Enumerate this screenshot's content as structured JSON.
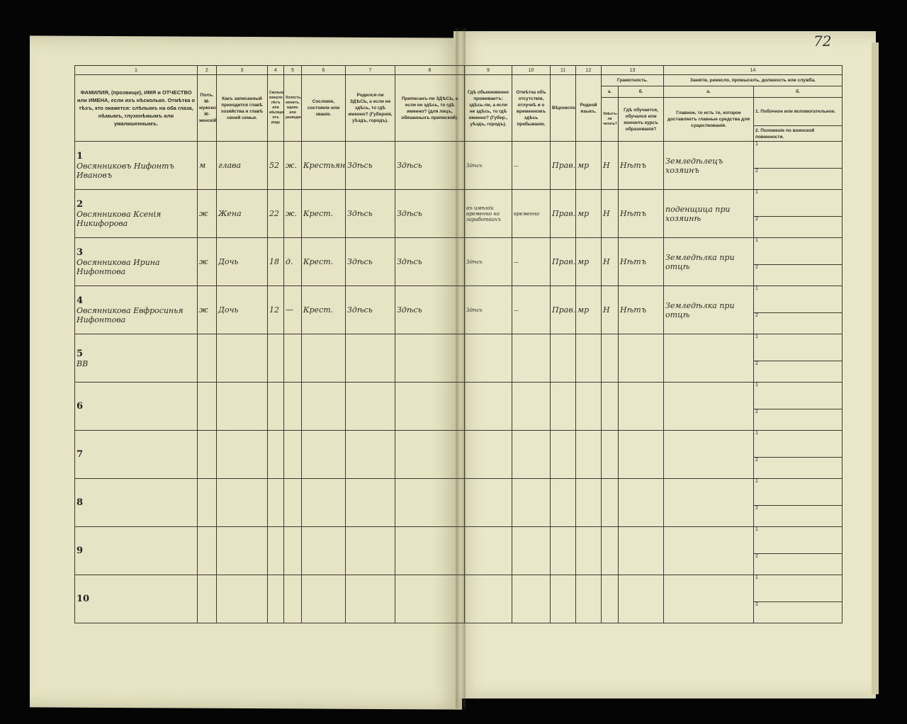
{
  "page_number": "72",
  "header": {
    "col_numbers": [
      "1",
      "2",
      "3",
      "4",
      "5",
      "6",
      "7",
      "8",
      "9",
      "10",
      "11",
      "12",
      "13",
      "14"
    ],
    "col1": "ФАМИЛИЯ, (прозвище), ИМЯ и ОТЧЕСТВО или ИМЕНА, если ихъ нѣсколько. Отмѣтка о тѣхъ, кто окажется: слѣпымъ на оба глаза, нѣмымъ, глухонѣмымъ или умалишеннымъ.",
    "col2": "Полъ. М-мужской. Ж-женскій.",
    "col3": "Какъ записанный приходится главѣ хозяйства и главѣ своей семьи.",
    "col4": "Сколько минуло лѣтъ или мѣсяцевъ отъ роду",
    "col5": "Холостъ, женатъ, вдовъ или разведенъ",
    "col6": "Сословіе, состояніе или званіе.",
    "col7": "Родился-ли ЗДѢСЬ, а если не здѣсь, то гдѣ именно? (Губернія, уѣздъ, городъ).",
    "col8": "Приписанъ-ли ЗДѢСЬ, а если не здѣсь, то гдѣ именно? (для лицъ, обязанныхъ припиской).",
    "col9": "Гдѣ обыкновенно проживаетъ: здѣсь-ли, а если не здѣсь, то гдѣ именно? (Губер., уѣздъ, городъ).",
    "col10": "Отмѣтка объ отсутствіи, отлучкѣ и о временномъ здѣсь пребываніи.",
    "col11": "Вѣроисповѣданіе.",
    "col12": "Родной языкъ.",
    "col13": "Грамотность.",
    "col13a_letter": "а.",
    "col13b_letter": "б.",
    "col13a": "Умѣетъ-ли читать?",
    "col13b": "Гдѣ обучается, обучался или кончилъ курсъ образованія?",
    "col14": "Занятіе, ремесло, промыселъ, должность или служба.",
    "col14a_letter": "а.",
    "col14b_letter": "б.",
    "col14a": "Главное, то есть то, которое доставляетъ главные средства для существованія.",
    "col14b_1": "1. Побочное или вспомогательное.",
    "col14b_2": "2. Положеніе по воинской повинности."
  },
  "sub_labels": [
    "1",
    "2"
  ],
  "rows": [
    {
      "n": "1",
      "name": "Овсянниковъ Нифонтъ Ивановъ",
      "sex": "м",
      "relation": "глава",
      "age": "52",
      "married": "ж.",
      "estate": "Крестьянинъ",
      "born": "Здѣсь",
      "registered": "Здѣсь",
      "residence": "Здѣсь",
      "absence": "—",
      "religion": "Прав.",
      "language": "мр",
      "literate": "Н",
      "education": "Нѣтъ",
      "occupation": "Земледѣлецъ хозяинъ"
    },
    {
      "n": "2",
      "name": "Овсянникова Ксенія Никифорова",
      "sex": "ж",
      "relation": "Жена",
      "age": "22",
      "married": "ж.",
      "estate": "Крест.",
      "born": "Здѣсь",
      "registered": "Здѣсь",
      "residence": "въ имѣніи временно на заработкахъ",
      "absence": "временно",
      "religion": "Прав.",
      "language": "мр",
      "literate": "Н",
      "education": "Нѣтъ",
      "occupation": "поденщица при хозяинѣ"
    },
    {
      "n": "3",
      "name": "Овсянникова Ирина Нифонтова",
      "sex": "ж",
      "relation": "Дочь",
      "age": "18",
      "married": "д.",
      "estate": "Крест.",
      "born": "Здѣсь",
      "registered": "Здѣсь",
      "residence": "Здѣсь",
      "absence": "—",
      "religion": "Прав.",
      "language": "мр",
      "literate": "Н",
      "education": "Нѣтъ",
      "occupation": "Земледѣлка при отцѣ"
    },
    {
      "n": "4",
      "name": "Овсянникова Евфросинья Нифонтова",
      "sex": "ж",
      "relation": "Дочь",
      "age": "12",
      "married": "—",
      "estate": "Крест.",
      "born": "Здѣсь",
      "registered": "Здѣсь",
      "residence": "Здѣсь",
      "absence": "—",
      "religion": "Прав.",
      "language": "мр",
      "literate": "Н",
      "education": "Нѣтъ",
      "occupation": "Земледѣлка при отцѣ"
    },
    {
      "n": "5",
      "name": "ВВ"
    },
    {
      "n": "6",
      "name": ""
    },
    {
      "n": "7",
      "name": ""
    },
    {
      "n": "8",
      "name": ""
    },
    {
      "n": "9",
      "name": ""
    },
    {
      "n": "10",
      "name": ""
    }
  ]
}
